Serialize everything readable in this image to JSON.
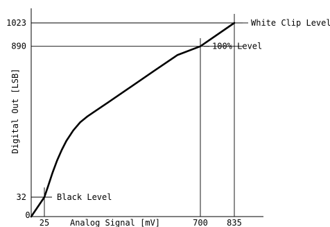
{
  "chart_data": {
    "type": "line",
    "xlabel": "Analog Signal [mV]",
    "ylabel": "Digital Out [LSB]",
    "x_ticks": [
      {
        "value": 0,
        "label": "0"
      },
      {
        "value": 25,
        "label": "25"
      },
      {
        "value": 700,
        "label": "700"
      },
      {
        "value": 835,
        "label": "835"
      }
    ],
    "y_ticks": [
      {
        "value": 32,
        "label": "32"
      },
      {
        "value": 890,
        "label": "890"
      },
      {
        "value": 1023,
        "label": "1023"
      }
    ],
    "series": [
      {
        "x": [
          0,
          25,
          40,
          60,
          80,
          100,
          120,
          150,
          180,
          210,
          250,
          300,
          400,
          500,
          600,
          700,
          835
        ],
        "y": [
          0,
          32,
          90,
          170,
          240,
          300,
          352,
          412,
          458,
          490,
          526,
          570,
          660,
          750,
          840,
          890,
          1023
        ]
      }
    ],
    "annotations": [
      {
        "text": "White Clip Level",
        "x": 835,
        "y": 1023
      },
      {
        "text": "100% Level",
        "x": 700,
        "y": 890
      },
      {
        "text": "Black Level",
        "x": 25,
        "y": 32
      }
    ],
    "xlim": [
      0,
      900
    ],
    "ylim": [
      0,
      1100
    ],
    "grid": false,
    "colors": {
      "line": "#000000",
      "text": "#000000",
      "background": "#ffffff"
    }
  }
}
